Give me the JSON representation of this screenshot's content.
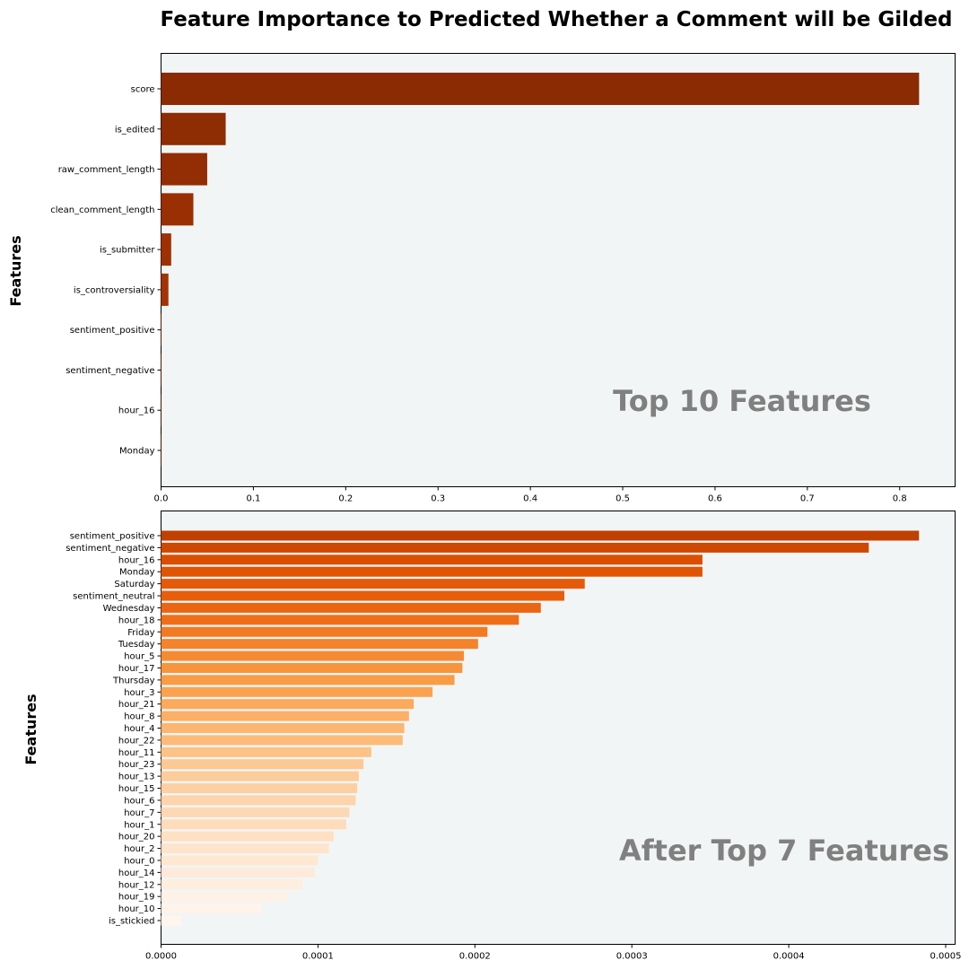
{
  "title": "Feature Importance to Predicted Whether a Comment will be Gilded",
  "colors": {
    "plot_background": "#f2f5f5",
    "watermark": "#808080",
    "text": "#000000"
  },
  "chart_data": [
    {
      "type": "bar",
      "orientation": "horizontal",
      "ylabel": "Features",
      "xlabel": "",
      "annotation": "Top 10 Features",
      "xlim": [
        0,
        0.86
      ],
      "xticks": [
        "0.0",
        "0.1",
        "0.2",
        "0.3",
        "0.4",
        "0.5",
        "0.6",
        "0.7",
        "0.8"
      ],
      "xtick_values": [
        0.0,
        0.1,
        0.2,
        0.3,
        0.4,
        0.5,
        0.6,
        0.7,
        0.8
      ],
      "categories": [
        "score",
        "is_edited",
        "raw_comment_length",
        "clean_comment_length",
        "is_submitter",
        "is_controversiality",
        "sentiment_positive",
        "sentiment_negative",
        "hour_16",
        "Monday"
      ],
      "values": [
        0.821,
        0.07,
        0.05,
        0.035,
        0.011,
        0.008,
        0.00048,
        0.00045,
        0.00035,
        0.00035
      ],
      "colors": [
        "#8a2b04",
        "#8e2c04",
        "#932d04",
        "#992f03",
        "#9e3103",
        "#a33303",
        "#a83403",
        "#ad3603",
        "#b23703",
        "#b63903"
      ]
    },
    {
      "type": "bar",
      "orientation": "horizontal",
      "ylabel": "Features",
      "xlabel": "",
      "annotation": "After Top 7 Features",
      "xlim": [
        0,
        0.000506
      ],
      "xticks": [
        "0.0000",
        "0.0001",
        "0.0002",
        "0.0003",
        "0.0004",
        "0.0005"
      ],
      "xtick_values": [
        0.0,
        0.0001,
        0.0002,
        0.0003,
        0.0004,
        0.0005
      ],
      "categories": [
        "sentiment_positive",
        "sentiment_negative",
        "hour_16",
        "Monday",
        "Saturday",
        "sentiment_neutral",
        "Wednesday",
        "hour_18",
        "Friday",
        "Tuesday",
        "hour_5",
        "hour_17",
        "Thursday",
        "hour_3",
        "hour_21",
        "hour_8",
        "hour_4",
        "hour_22",
        "hour_11",
        "hour_23",
        "hour_13",
        "hour_15",
        "hour_6",
        "hour_7",
        "hour_1",
        "hour_20",
        "hour_2",
        "hour_0",
        "hour_14",
        "hour_12",
        "hour_19",
        "hour_10",
        "is_stickied"
      ],
      "values": [
        0.000483,
        0.000451,
        0.000345,
        0.000345,
        0.00027,
        0.000257,
        0.000242,
        0.000228,
        0.000208,
        0.000202,
        0.000193,
        0.000192,
        0.000187,
        0.000173,
        0.000161,
        0.000158,
        0.000155,
        0.000154,
        0.000134,
        0.000129,
        0.000126,
        0.000125,
        0.000124,
        0.00012,
        0.000118,
        0.00011,
        0.000107,
        0.0001,
        9.8e-05,
        9e-05,
        8e-05,
        6.4e-05,
        1.3e-05
      ],
      "colors": [
        "#c04002",
        "#cf4801",
        "#db4e02",
        "#e05404",
        "#e55a09",
        "#e85e0c",
        "#ec6513",
        "#f06e18",
        "#f37a22",
        "#f5832b",
        "#f68a32",
        "#f7943c",
        "#f99c46",
        "#fba250",
        "#fca95c",
        "#fdaf66",
        "#fdb670",
        "#fdbb79",
        "#fdc286",
        "#fdc893",
        "#fdcc9b",
        "#fdd0a2",
        "#fdd4ab",
        "#fdd8b4",
        "#fedcbb",
        "#fee0c2",
        "#fee4cb",
        "#fee8d1",
        "#feeada",
        "#fdeee0",
        "#fef1e5",
        "#fff3ea",
        "#fff5ee"
      ]
    }
  ]
}
